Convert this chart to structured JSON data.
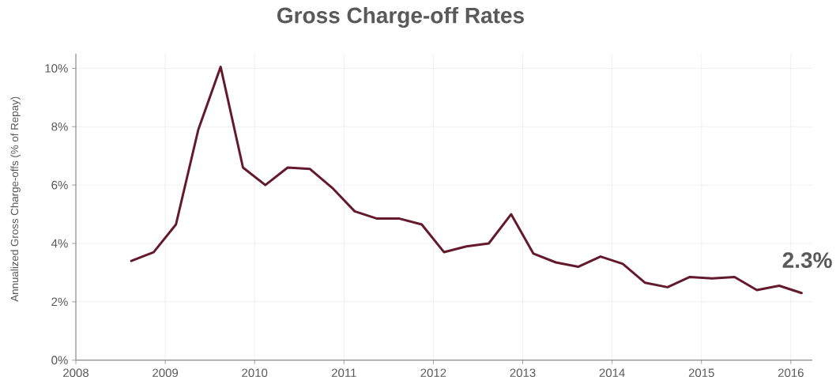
{
  "chart_data": {
    "type": "line",
    "title": "Gross Charge-off Rates",
    "ylabel": "Annualized Gross Charge-offs (% of Repay)",
    "x": [
      2008.62,
      2008.87,
      2009.12,
      2009.37,
      2009.62,
      2009.87,
      2010.12,
      2010.37,
      2010.62,
      2010.87,
      2011.12,
      2011.37,
      2011.62,
      2011.87,
      2012.12,
      2012.37,
      2012.62,
      2012.87,
      2013.12,
      2013.37,
      2013.62,
      2013.87,
      2014.12,
      2014.37,
      2014.62,
      2014.87,
      2015.12,
      2015.37,
      2015.62,
      2015.87,
      2016.12
    ],
    "series": [
      {
        "color": "#641a2d",
        "values": [
          3.4,
          3.7,
          4.65,
          7.9,
          10.05,
          6.6,
          6.0,
          6.6,
          6.55,
          5.9,
          5.1,
          4.85,
          4.85,
          4.65,
          3.7,
          3.9,
          4.0,
          5.0,
          3.65,
          3.35,
          3.2,
          3.55,
          3.3,
          2.65,
          2.5,
          2.85,
          2.8,
          2.85,
          2.4,
          2.55,
          2.3
        ]
      }
    ],
    "xlim": [
      2008,
      2016.24
    ],
    "ylim": [
      0,
      10.5
    ],
    "xticks": [
      2008,
      2009,
      2010,
      2011,
      2012,
      2013,
      2014,
      2015,
      2016
    ],
    "yticks": [
      {
        "value": 0,
        "label": "0%"
      },
      {
        "value": 2,
        "label": "2%"
      },
      {
        "value": 4,
        "label": "4%"
      },
      {
        "value": 6,
        "label": "6%"
      },
      {
        "value": 8,
        "label": "8%"
      },
      {
        "value": 10,
        "label": "10%"
      }
    ],
    "grid": true,
    "marker": "none",
    "line_style": "solid",
    "annotations": [
      {
        "text": "2.3%",
        "x": 2016.12,
        "y": 2.3
      }
    ]
  }
}
